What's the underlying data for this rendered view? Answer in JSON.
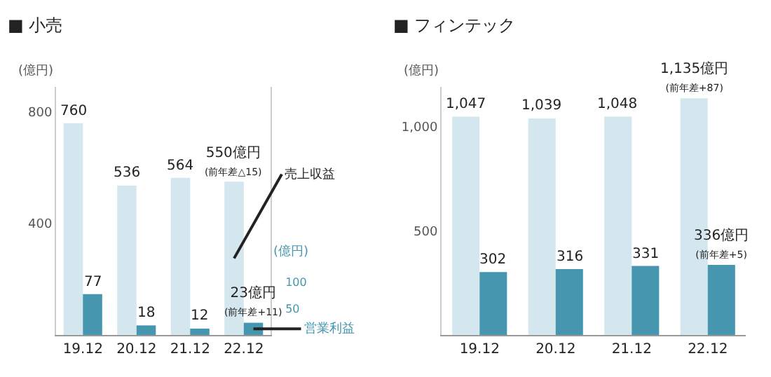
{
  "chart_data": [
    {
      "type": "bar",
      "title": "■ 小売",
      "ylabel": "(億円)",
      "y2label": "(億円)",
      "categories": [
        "19.12",
        "20.12",
        "21.12",
        "22.12"
      ],
      "series": [
        {
          "name": "売上収益",
          "color": "#d5e7ee",
          "values": [
            760,
            536,
            564,
            550
          ],
          "value_labels": [
            "760",
            "536",
            "564",
            "550億円\n(前年差△15)"
          ]
        },
        {
          "name": "営業利益",
          "color": "#4596ae",
          "axis": "y2",
          "values": [
            77,
            18,
            12,
            23
          ],
          "value_labels": [
            "77",
            "18",
            "12",
            "23億円\n(前年差+11)"
          ]
        }
      ],
      "ylim": [
        0,
        890
      ],
      "yticks": [
        400,
        800
      ],
      "y2lim": [
        0,
        468
      ],
      "y2ticks": [
        50,
        100
      ],
      "grid": false,
      "legend": false
    },
    {
      "type": "bar",
      "title": "■ フィンテック",
      "ylabel": "(億円)",
      "categories": [
        "19.12",
        "20.12",
        "21.12",
        "22.12"
      ],
      "series": [
        {
          "color": "#d5e7ee",
          "values": [
            1047,
            1039,
            1048,
            1135
          ],
          "value_labels": [
            "1,047",
            "1,039",
            "1,048",
            "1,135億円\n(前年差+87)"
          ]
        },
        {
          "color": "#4596ae",
          "values": [
            302,
            316,
            331,
            336
          ],
          "value_labels": [
            "302",
            "316",
            "331",
            "336億円\n(前年差+5)"
          ]
        }
      ],
      "ylim": [
        0,
        1190
      ],
      "yticks": [
        500,
        {
          "value": 1000,
          "label": "1,000"
        }
      ],
      "grid": false,
      "legend": false
    }
  ]
}
